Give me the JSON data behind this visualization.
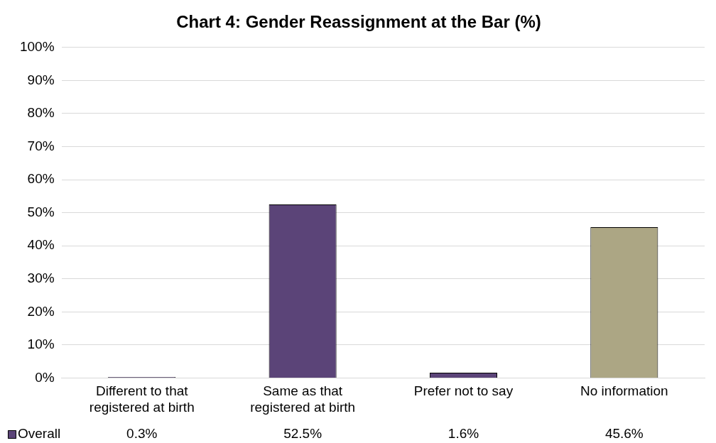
{
  "chart_data": {
    "type": "bar",
    "title": "Chart 4: Gender Reassignment at the Bar (%)",
    "categories": [
      "Different to that registered at birth",
      "Same as that registered at birth",
      "Prefer not to say",
      "No information"
    ],
    "series": [
      {
        "name": "Overall",
        "color": "#5b4478",
        "colors": [
          "#5b4478",
          "#5b4478",
          "#5b4478",
          "#aca684"
        ],
        "values": [
          0.3,
          52.5,
          1.6,
          45.6
        ],
        "value_labels": [
          "0.3%",
          "52.5%",
          "1.6%",
          "45.6%"
        ]
      }
    ],
    "ylim": [
      0,
      100
    ],
    "yticks": [
      {
        "value": 0,
        "label": "0%"
      },
      {
        "value": 10,
        "label": "10%"
      },
      {
        "value": 20,
        "label": "20%"
      },
      {
        "value": 30,
        "label": "30%"
      },
      {
        "value": 40,
        "label": "40%"
      },
      {
        "value": 50,
        "label": "50%"
      },
      {
        "value": 60,
        "label": "60%"
      },
      {
        "value": 70,
        "label": "70%"
      },
      {
        "value": 80,
        "label": "80%"
      },
      {
        "value": 90,
        "label": "90%"
      },
      {
        "value": 100,
        "label": "100%"
      }
    ],
    "grid": "y",
    "legend": "bottom left"
  }
}
